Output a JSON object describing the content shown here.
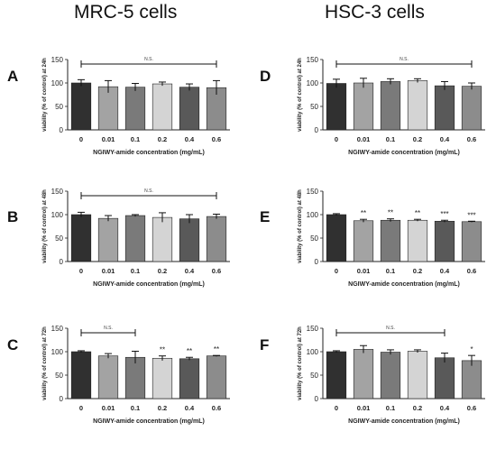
{
  "titles": {
    "left": "MRC-5 cells",
    "right": "HSC-3 cells"
  },
  "chart_data": [
    {
      "panel": "A",
      "type": "bar",
      "categories": [
        "0",
        "0.01",
        "0.1",
        "0.2",
        "0.4",
        "0.6"
      ],
      "values": [
        100,
        92,
        91,
        98,
        91,
        90
      ],
      "errors": [
        7,
        13,
        8,
        4,
        7,
        15
      ],
      "significance": [
        "",
        "",
        "",
        "",
        "",
        ""
      ],
      "ns_label": "N.S.",
      "ns_span": [
        0,
        5
      ],
      "ylabel": "viability (% of control) at 24h",
      "xlabel": "NGIWY-amide concentration (mg/mL)",
      "ylim": [
        0,
        150
      ],
      "yticks": [
        0,
        50,
        100,
        150
      ],
      "colors": [
        "#303030",
        "#a3a3a3",
        "#7a7a7a",
        "#d4d4d4",
        "#595959",
        "#8c8c8c"
      ]
    },
    {
      "panel": "D",
      "type": "bar",
      "categories": [
        "0",
        "0.01",
        "0.1",
        "0.2",
        "0.4",
        "0.6"
      ],
      "values": [
        99,
        100,
        103,
        105,
        94,
        93
      ],
      "errors": [
        9,
        10,
        6,
        4,
        9,
        7
      ],
      "significance": [
        "",
        "",
        "",
        "",
        "",
        ""
      ],
      "ns_label": "N.S.",
      "ns_span": [
        0,
        5
      ],
      "ylabel": "viability (% of control) at 24h",
      "xlabel": "NGIWY-amide concentration (mg/mL)",
      "ylim": [
        0,
        150
      ],
      "yticks": [
        0,
        50,
        100,
        150
      ],
      "colors": [
        "#303030",
        "#a3a3a3",
        "#7a7a7a",
        "#d4d4d4",
        "#595959",
        "#8c8c8c"
      ]
    },
    {
      "panel": "B",
      "type": "bar",
      "categories": [
        "0",
        "0.01",
        "0.1",
        "0.2",
        "0.4",
        "0.6"
      ],
      "values": [
        100,
        92,
        98,
        94,
        91,
        96
      ],
      "errors": [
        5,
        6,
        2,
        10,
        9,
        5
      ],
      "significance": [
        "",
        "",
        "",
        "",
        "",
        ""
      ],
      "ns_label": "N.S.",
      "ns_span": [
        0,
        5
      ],
      "ylabel": "viability (% of control) at 48h",
      "xlabel": "NGIWY-amide concentration (mg/mL)",
      "ylim": [
        0,
        150
      ],
      "yticks": [
        0,
        50,
        100,
        150
      ],
      "colors": [
        "#303030",
        "#a3a3a3",
        "#7a7a7a",
        "#d4d4d4",
        "#595959",
        "#8c8c8c"
      ]
    },
    {
      "panel": "E",
      "type": "bar",
      "categories": [
        "0",
        "0.01",
        "0.1",
        "0.2",
        "0.4",
        "0.6"
      ],
      "values": [
        100,
        87,
        88,
        88,
        86,
        85
      ],
      "errors": [
        2,
        3,
        3,
        2,
        2,
        1
      ],
      "significance": [
        "",
        "**",
        "**",
        "**",
        "***",
        "***"
      ],
      "ns_label": "",
      "ns_span": null,
      "ylabel": "viability (% of control) at 48h",
      "xlabel": "NGIWY-amide concentration (mg/mL)",
      "ylim": [
        0,
        150
      ],
      "yticks": [
        0,
        50,
        100,
        150
      ],
      "colors": [
        "#303030",
        "#a3a3a3",
        "#7a7a7a",
        "#d4d4d4",
        "#595959",
        "#8c8c8c"
      ]
    },
    {
      "panel": "C",
      "type": "bar",
      "categories": [
        "0",
        "0.01",
        "0.1",
        "0.2",
        "0.4",
        "0.6"
      ],
      "values": [
        100,
        91,
        88,
        86,
        85,
        91
      ],
      "errors": [
        2,
        5,
        13,
        5,
        3,
        1
      ],
      "significance": [
        "",
        "",
        "",
        "**",
        "**",
        "**"
      ],
      "ns_label": "N.S.",
      "ns_span": [
        0,
        2
      ],
      "ylabel": "viability (% of control) at 72h",
      "xlabel": "NGIWY-amide concentration (mg/mL)",
      "ylim": [
        0,
        150
      ],
      "yticks": [
        0,
        50,
        100,
        150
      ],
      "colors": [
        "#303030",
        "#a3a3a3",
        "#7a7a7a",
        "#d4d4d4",
        "#595959",
        "#8c8c8c"
      ]
    },
    {
      "panel": "F",
      "type": "bar",
      "categories": [
        "0",
        "0.01",
        "0.1",
        "0.2",
        "0.4",
        "0.6"
      ],
      "values": [
        100,
        105,
        99,
        101,
        87,
        81
      ],
      "errors": [
        2,
        8,
        5,
        3,
        10,
        11
      ],
      "significance": [
        "",
        "",
        "",
        "",
        "",
        "*"
      ],
      "ns_label": "N.S.",
      "ns_span": [
        0,
        4
      ],
      "ylabel": "viability (% of control) at 72h",
      "xlabel": "NGIWY-amide concentration (mg/mL)",
      "ylim": [
        0,
        150
      ],
      "yticks": [
        0,
        50,
        100,
        150
      ],
      "colors": [
        "#303030",
        "#a3a3a3",
        "#7a7a7a",
        "#d4d4d4",
        "#595959",
        "#8c8c8c"
      ]
    }
  ]
}
